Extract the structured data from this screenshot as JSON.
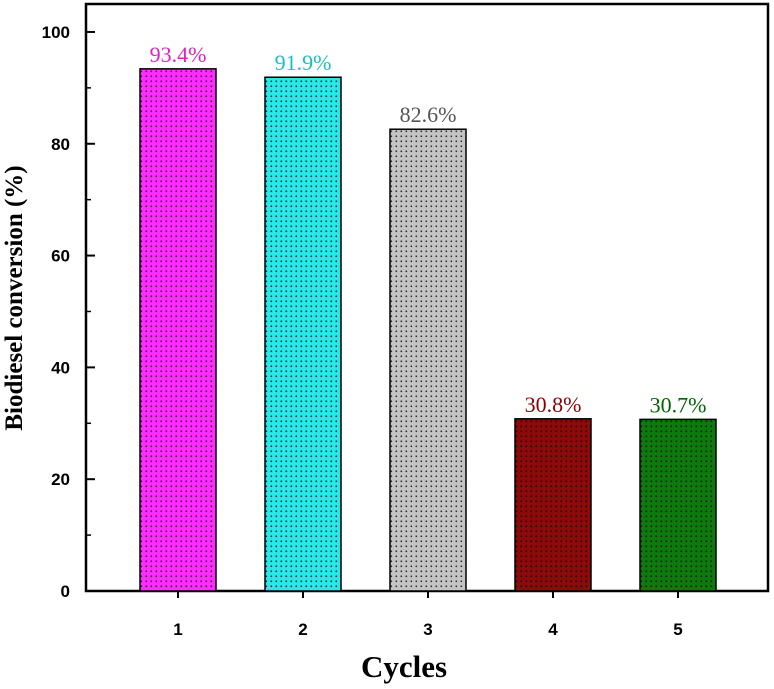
{
  "chart_data": {
    "type": "bar",
    "title": "",
    "xlabel": "Cycles",
    "ylabel": "Biodiesel conversion (%)",
    "categories": [
      "1",
      "2",
      "3",
      "4",
      "5"
    ],
    "values": [
      93.4,
      91.9,
      82.6,
      30.8,
      30.7
    ],
    "data_labels": [
      "93.4%",
      "91.9%",
      "82.6%",
      "30.8%",
      "30.7%"
    ],
    "bar_colors": [
      "#ff2cff",
      "#2ae8e8",
      "#c4c4c4",
      "#8b0a0a",
      "#0e7a0e"
    ],
    "label_colors": [
      "#e020c8",
      "#1bbfbf",
      "#555555",
      "#8b0000",
      "#006400"
    ],
    "ylim": [
      0,
      105
    ],
    "yticks": [
      "0",
      "20",
      "40",
      "60",
      "80",
      "100"
    ],
    "ytick_values": [
      0,
      20,
      40,
      60,
      80,
      100
    ],
    "grid": false,
    "legend": "none"
  }
}
